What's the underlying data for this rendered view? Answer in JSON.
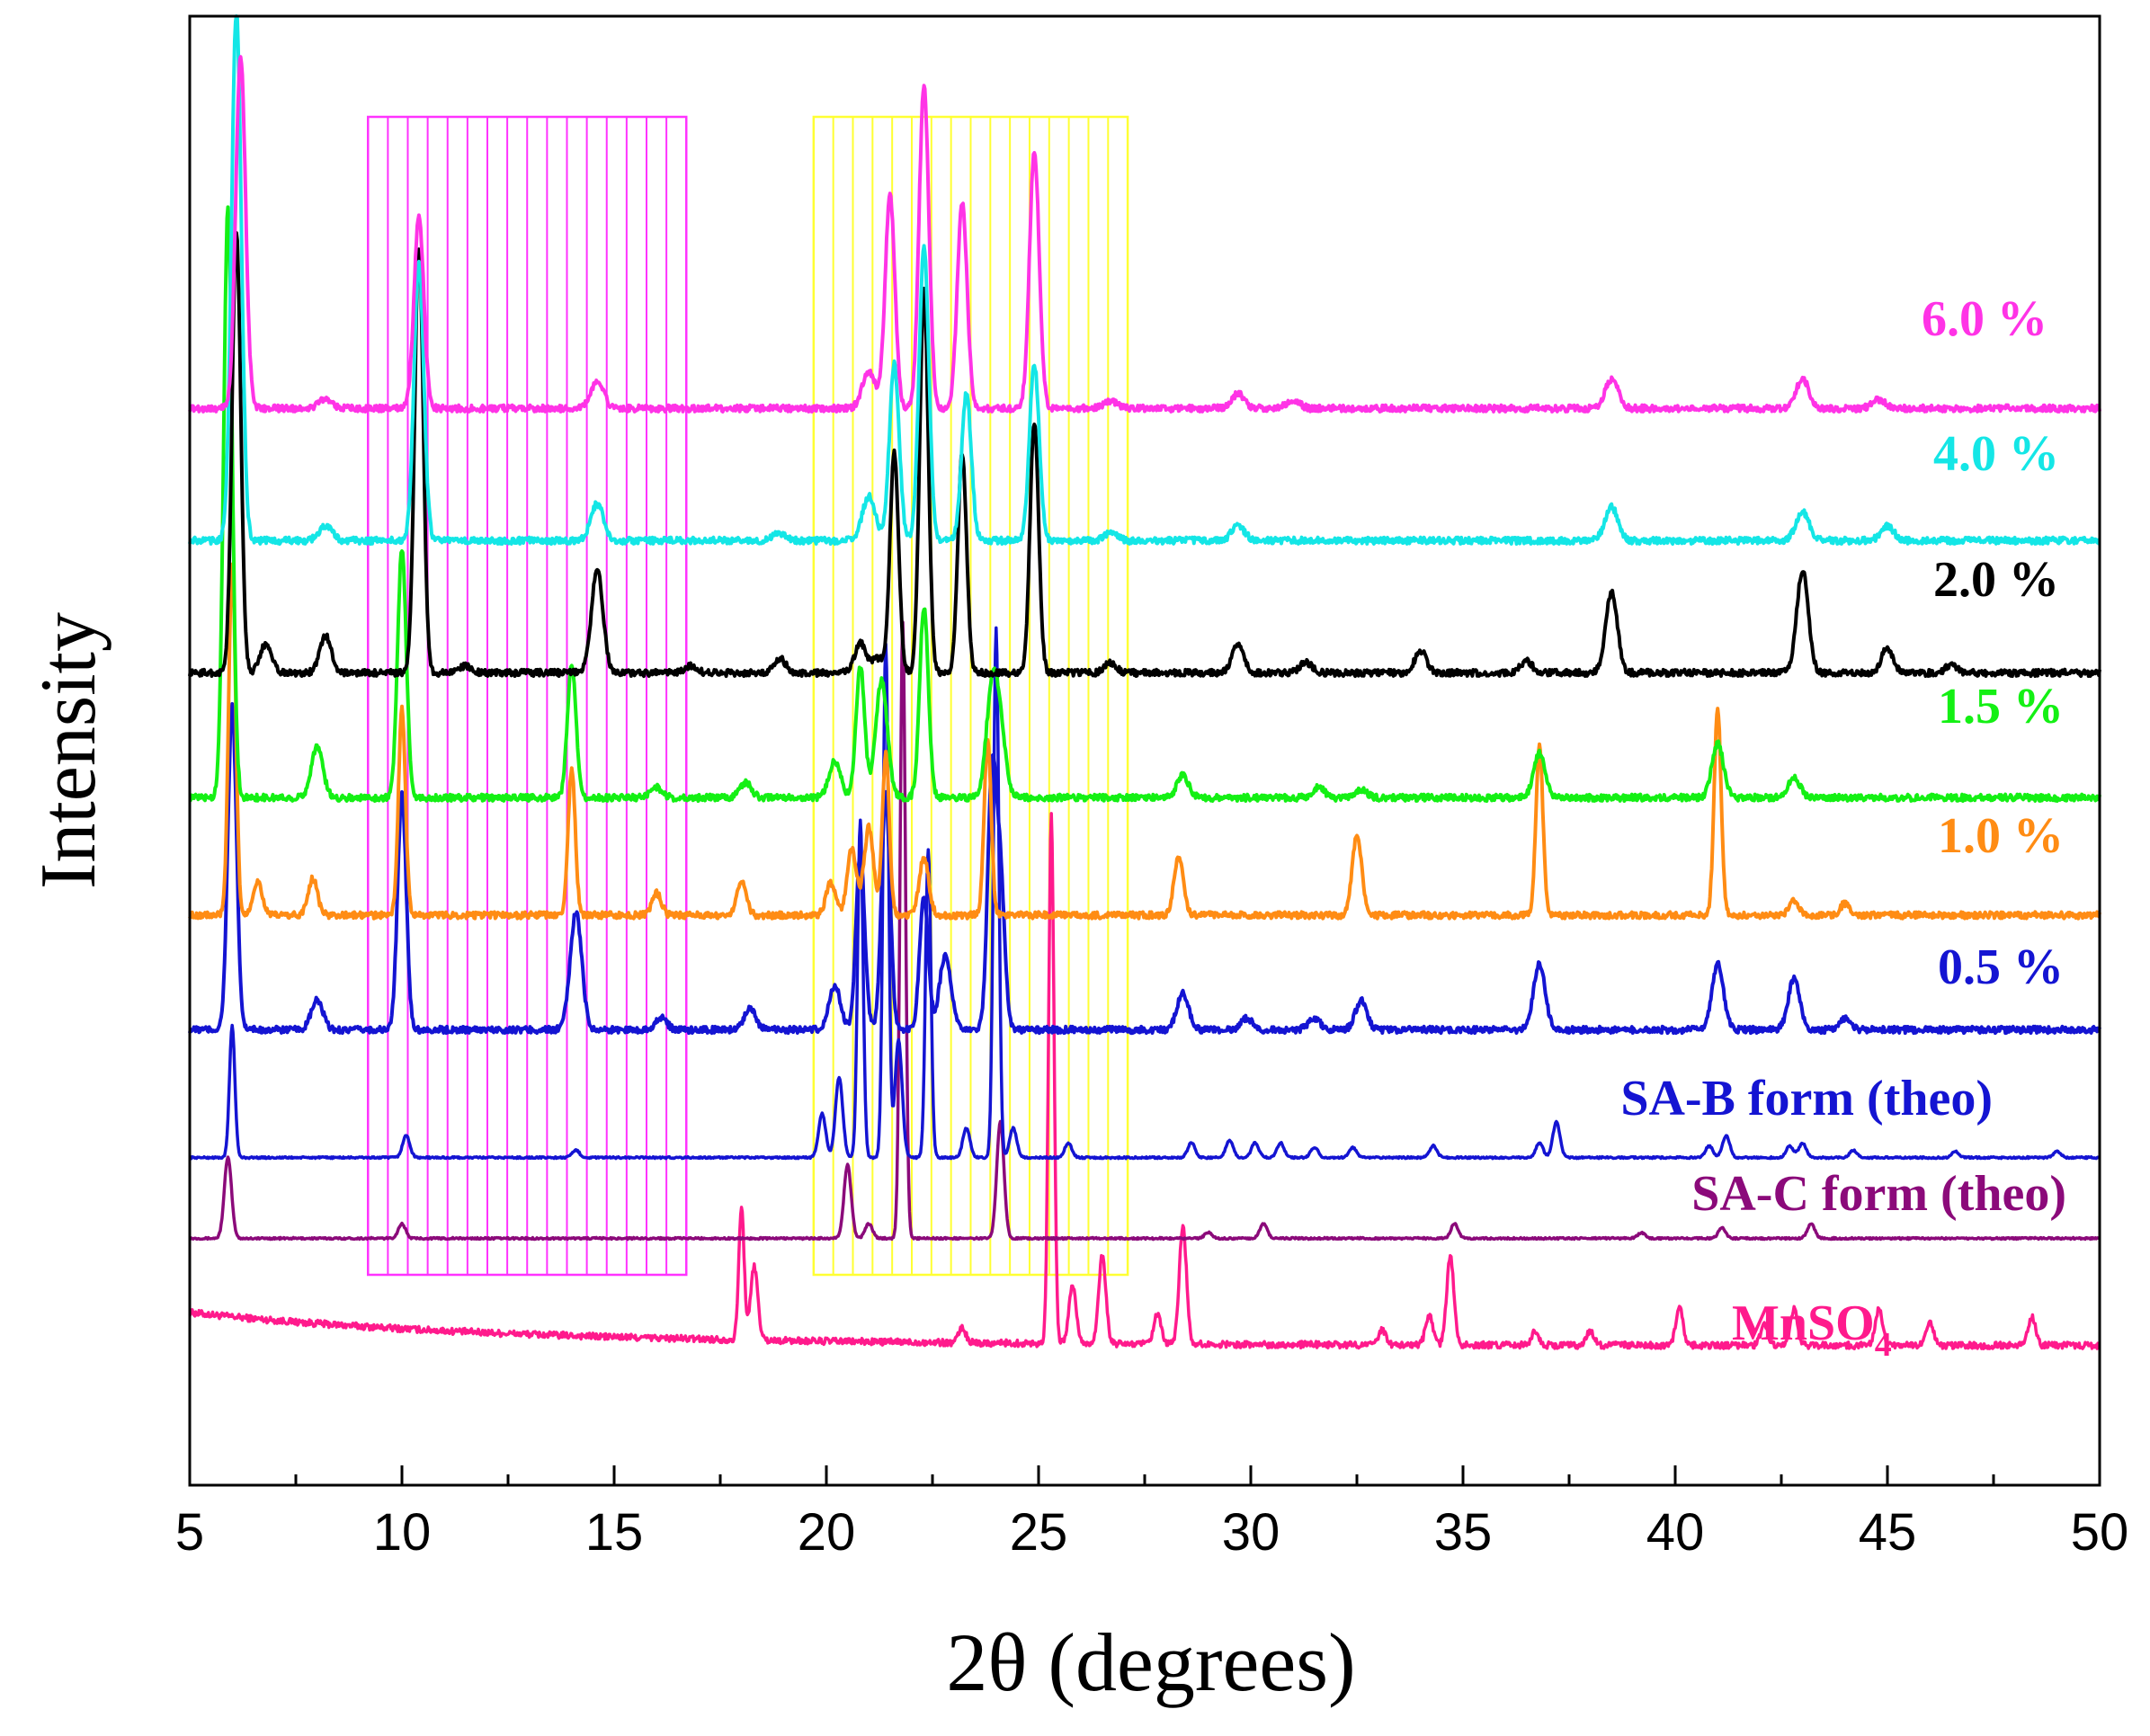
{
  "chart_data": {
    "type": "line",
    "title": "",
    "xlabel": "2θ (degrees)",
    "ylabel": "Intensity",
    "xlim": [
      5,
      50
    ],
    "ylim": [
      0,
      100
    ],
    "xticks": [
      5,
      10,
      15,
      20,
      25,
      30,
      35,
      40,
      45,
      50
    ],
    "ytick_labels": false,
    "grid": false,
    "highlight_regions": [
      {
        "name": "magenta-region",
        "x_range": [
          9.2,
          16.7
        ],
        "color": "#ff33ff",
        "line_count": 16
      },
      {
        "name": "yellow-region",
        "x_range": [
          19.7,
          27.1
        ],
        "color": "#ffff33",
        "line_count": 16
      }
    ],
    "series": [
      {
        "name": "MnSO4",
        "label": "MnSO",
        "label_sub": "4",
        "color": "#ff1a8c",
        "baseline": 9.5,
        "slope_start": 12.0,
        "slope_end": 5.0,
        "peaks": [
          [
            18.0,
            9.0
          ],
          [
            18.3,
            5.0
          ],
          [
            23.2,
            1.0
          ],
          [
            25.3,
            36.0
          ],
          [
            25.8,
            4.0
          ],
          [
            26.5,
            6.0
          ],
          [
            27.8,
            2.0
          ],
          [
            28.4,
            8.0
          ],
          [
            33.1,
            1.0
          ],
          [
            34.2,
            2.0
          ],
          [
            34.7,
            6.0
          ],
          [
            36.7,
            1.0
          ],
          [
            38.0,
            1.0
          ],
          [
            40.1,
            2.5
          ],
          [
            42.1,
            1.5
          ],
          [
            42.8,
            2.5
          ],
          [
            44.8,
            2.5
          ],
          [
            46.0,
            1.5
          ],
          [
            48.4,
            2.0
          ]
        ]
      },
      {
        "name": "SA-C form (theo)",
        "label": "SA-C form (theo)",
        "color": "#8b0a7a",
        "baseline": 16.8,
        "peaks": [
          [
            5.9,
            5.5
          ],
          [
            10.0,
            1.0
          ],
          [
            20.5,
            5.0
          ],
          [
            21.0,
            1.0
          ],
          [
            21.8,
            42.0
          ],
          [
            24.1,
            8.0
          ],
          [
            29.0,
            0.4
          ],
          [
            30.3,
            1.0
          ],
          [
            34.8,
            1.0
          ],
          [
            39.2,
            0.4
          ],
          [
            41.1,
            0.7
          ],
          [
            43.2,
            1.0
          ]
        ]
      },
      {
        "name": "SA-B form (theo)",
        "label": "SA-B form (theo)",
        "color": "#1414d2",
        "baseline": 22.3,
        "peaks": [
          [
            6.0,
            9.0
          ],
          [
            10.1,
            1.5
          ],
          [
            14.1,
            0.5
          ],
          [
            19.9,
            3.0
          ],
          [
            20.3,
            5.5
          ],
          [
            20.8,
            23.0
          ],
          [
            21.4,
            35.0
          ],
          [
            21.7,
            8.0
          ],
          [
            22.4,
            21.0
          ],
          [
            23.3,
            2.0
          ],
          [
            24.0,
            36.0
          ],
          [
            24.4,
            2.0
          ],
          [
            25.7,
            1.0
          ],
          [
            28.6,
            1.0
          ],
          [
            29.5,
            1.2
          ],
          [
            30.1,
            1.0
          ],
          [
            30.7,
            1.0
          ],
          [
            31.5,
            0.7
          ],
          [
            32.4,
            0.7
          ],
          [
            34.3,
            0.8
          ],
          [
            36.8,
            1.0
          ],
          [
            37.2,
            2.4
          ],
          [
            40.8,
            0.8
          ],
          [
            41.2,
            1.5
          ],
          [
            42.7,
            0.8
          ],
          [
            43.0,
            1.0
          ],
          [
            44.2,
            0.5
          ],
          [
            46.6,
            0.4
          ],
          [
            49.0,
            0.4
          ]
        ]
      },
      {
        "name": "0.5 %",
        "label": "0.5 %",
        "color": "#1414d2",
        "baseline": 31.0,
        "width_scale": 1.6,
        "peaks": [
          [
            6.0,
            22.0
          ],
          [
            8.0,
            2.0
          ],
          [
            10.0,
            16.0
          ],
          [
            14.1,
            8.0
          ],
          [
            16.1,
            0.8
          ],
          [
            18.2,
            1.5
          ],
          [
            20.2,
            3.0
          ],
          [
            20.8,
            12.0
          ],
          [
            21.4,
            16.0
          ],
          [
            22.3,
            9.0
          ],
          [
            22.8,
            5.0
          ],
          [
            23.9,
            17.0
          ],
          [
            24.1,
            10.0
          ],
          [
            28.4,
            2.5
          ],
          [
            29.9,
            0.8
          ],
          [
            31.5,
            0.8
          ],
          [
            32.6,
            2.0
          ],
          [
            36.8,
            4.5
          ],
          [
            41.0,
            4.5
          ],
          [
            42.8,
            3.5
          ],
          [
            44.0,
            0.8
          ]
        ]
      },
      {
        "name": "1.0 %",
        "label": "1.0 %",
        "color": "#ff8c14",
        "baseline": 38.8,
        "width_scale": 1.3,
        "peaks": [
          [
            6.0,
            24.0
          ],
          [
            6.6,
            2.3
          ],
          [
            7.9,
            2.5
          ],
          [
            10.0,
            14.0
          ],
          [
            14.0,
            10.0
          ],
          [
            16.0,
            1.5
          ],
          [
            18.0,
            2.4
          ],
          [
            20.1,
            2.2
          ],
          [
            20.6,
            4.5
          ],
          [
            21.0,
            6.0
          ],
          [
            21.4,
            11.0
          ],
          [
            22.3,
            4.0
          ],
          [
            23.8,
            12.0
          ],
          [
            28.3,
            4.0
          ],
          [
            32.5,
            5.5
          ],
          [
            36.8,
            11.5
          ],
          [
            41.0,
            14.0
          ],
          [
            42.8,
            1.0
          ],
          [
            44.0,
            0.8
          ]
        ]
      },
      {
        "name": "1.5 %",
        "label": "1.5 %",
        "color": "#14f014",
        "baseline": 46.8,
        "width_scale": 1.6,
        "peaks": [
          [
            5.9,
            40.0
          ],
          [
            8.0,
            3.5
          ],
          [
            10.0,
            17.0
          ],
          [
            14.0,
            9.0
          ],
          [
            16.0,
            0.7
          ],
          [
            18.1,
            1.0
          ],
          [
            20.2,
            2.5
          ],
          [
            20.8,
            9.0
          ],
          [
            21.3,
            8.0
          ],
          [
            22.3,
            13.0
          ],
          [
            23.9,
            7.0
          ],
          [
            24.1,
            4.0
          ],
          [
            28.4,
            1.5
          ],
          [
            31.6,
            0.7
          ],
          [
            32.6,
            0.6
          ],
          [
            36.8,
            3.0
          ],
          [
            41.0,
            3.7
          ],
          [
            42.8,
            1.4
          ]
        ]
      },
      {
        "name": "2.0 %",
        "label": "2.0 %",
        "color": "#000000",
        "baseline": 55.3,
        "width_scale": 1.6,
        "peaks": [
          [
            6.1,
            30.0
          ],
          [
            6.8,
            2.0
          ],
          [
            8.2,
            2.5
          ],
          [
            10.4,
            29.0
          ],
          [
            11.5,
            0.5
          ],
          [
            14.6,
            7.0
          ],
          [
            16.8,
            0.5
          ],
          [
            18.9,
            1.0
          ],
          [
            20.8,
            2.0
          ],
          [
            21.2,
            1.0
          ],
          [
            21.6,
            15.0
          ],
          [
            22.3,
            26.0
          ],
          [
            23.2,
            15.0
          ],
          [
            24.9,
            17.0
          ],
          [
            26.7,
            0.7
          ],
          [
            29.7,
            2.0
          ],
          [
            31.3,
            0.7
          ],
          [
            34.0,
            1.5
          ],
          [
            36.5,
            0.8
          ],
          [
            38.5,
            5.5
          ],
          [
            43.0,
            7.0
          ],
          [
            45.0,
            1.7
          ],
          [
            46.5,
            0.5
          ]
        ]
      },
      {
        "name": "4.0 %",
        "label": "4.0 %",
        "color": "#14e6e6",
        "baseline": 64.3,
        "width_scale": 1.8,
        "peaks": [
          [
            6.1,
            36.0
          ],
          [
            8.2,
            1.0
          ],
          [
            10.4,
            19.0
          ],
          [
            14.6,
            2.5
          ],
          [
            18.9,
            0.5
          ],
          [
            21.0,
            3.0
          ],
          [
            21.6,
            12.0
          ],
          [
            22.3,
            20.0
          ],
          [
            23.3,
            10.0
          ],
          [
            24.9,
            12.0
          ],
          [
            26.7,
            0.5
          ],
          [
            29.7,
            1.0
          ],
          [
            38.5,
            2.3
          ],
          [
            43.0,
            2.0
          ],
          [
            45.0,
            1.0
          ]
        ]
      },
      {
        "name": "6.0 %",
        "label": "6.0 %",
        "color": "#ff33e6",
        "baseline": 73.3,
        "width_scale": 1.8,
        "peaks": [
          [
            6.2,
            24.0
          ],
          [
            8.2,
            0.7
          ],
          [
            10.4,
            13.0
          ],
          [
            14.6,
            1.8
          ],
          [
            21.0,
            2.5
          ],
          [
            21.5,
            14.5
          ],
          [
            22.3,
            22.0
          ],
          [
            23.2,
            14.0
          ],
          [
            24.9,
            17.5
          ],
          [
            26.7,
            0.5
          ],
          [
            29.7,
            1.0
          ],
          [
            31.0,
            0.5
          ],
          [
            38.5,
            2.0
          ],
          [
            43.0,
            2.0
          ],
          [
            44.8,
            0.6
          ]
        ]
      }
    ]
  }
}
